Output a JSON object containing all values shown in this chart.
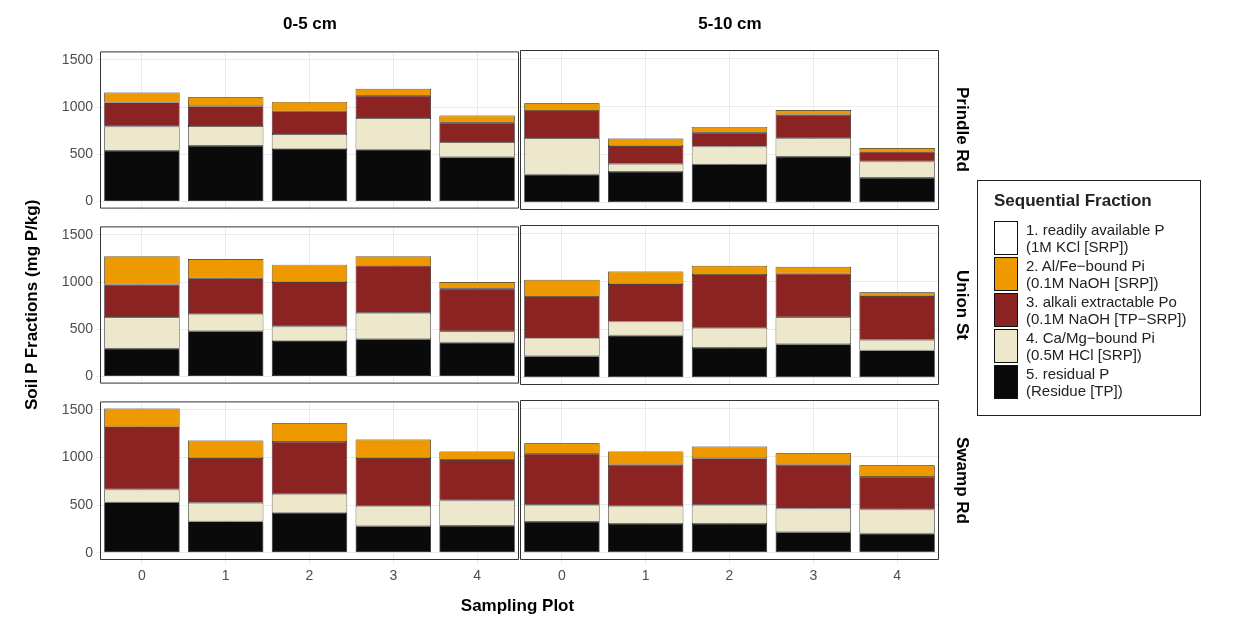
{
  "chart_data": [
    {
      "type": "bar",
      "title": "0-5 cm",
      "stacked": true,
      "grid": true,
      "tick_labels": "y",
      "legend": "right",
      "legend_title": "Sequential Fraction",
      "categories": [
        "0",
        "1",
        "2",
        "3",
        "4"
      ],
      "ylim": [
        -75,
        1590
      ],
      "yticks": [
        0,
        500,
        1000,
        1500
      ],
      "series": [
        {
          "name": "5. residual P\n(Residue [TP])",
          "color": "#0a0a0a",
          "values": [
            535,
            590,
            555,
            550,
            470
          ]
        },
        {
          "name": "4. Ca/Mg−bound Pi\n(0.5M HCl [SRP])",
          "color": "#ede7cc",
          "values": [
            260,
            210,
            160,
            335,
            160
          ]
        },
        {
          "name": "3. alkali extractable Po\n(0.1M NaOH [TP−SRP])",
          "color": "#8b2323",
          "values": [
            255,
            210,
            240,
            235,
            205
          ]
        },
        {
          "name": "2. Al/Fe−bound Pi\n(0.1M NaOH [SRP])",
          "color": "#ee9900",
          "values": [
            105,
            95,
            100,
            75,
            75
          ]
        },
        {
          "name": "1. readily available P\n(1M KCl [SRP])",
          "color": "#ffffff",
          "values": [
            null,
            null,
            null,
            null,
            null
          ]
        }
      ]
    },
    {
      "type": "bar",
      "title": "5-10 cm",
      "y2label": "Prindle Rd",
      "stacked": true,
      "grid": true,
      "tick_labels": false,
      "categories": [
        "0",
        "1",
        "2",
        "3",
        "4"
      ],
      "ylim": [
        -75,
        1590
      ],
      "yticks": [
        0,
        500,
        1000,
        1500
      ],
      "series": [
        {
          "color": "#0a0a0a",
          "values": [
            295,
            320,
            400,
            480,
            260
          ]
        },
        {
          "color": "#ede7cc",
          "values": [
            380,
            85,
            185,
            190,
            170
          ]
        },
        {
          "color": "#8b2323",
          "values": [
            280,
            185,
            145,
            245,
            100
          ]
        },
        {
          "color": "#ee9900",
          "values": [
            80,
            80,
            60,
            50,
            40
          ]
        }
      ]
    },
    {
      "type": "bar",
      "ylabel": "Soil P Fractions (mg P/kg)",
      "stacked": true,
      "grid": true,
      "tick_labels": "y",
      "categories": [
        "0",
        "1",
        "2",
        "3",
        "4"
      ],
      "ylim": [
        -75,
        1590
      ],
      "yticks": [
        0,
        500,
        1000,
        1500
      ],
      "series": [
        {
          "color": "#0a0a0a",
          "values": [
            295,
            480,
            375,
            395,
            360
          ]
        },
        {
          "color": "#ede7cc",
          "values": [
            335,
            185,
            155,
            280,
            120
          ]
        },
        {
          "color": "#8b2323",
          "values": [
            345,
            375,
            470,
            500,
            450
          ]
        },
        {
          "color": "#ee9900",
          "values": [
            300,
            205,
            185,
            100,
            70
          ]
        }
      ]
    },
    {
      "type": "bar",
      "y2label": "Union St",
      "stacked": true,
      "grid": true,
      "tick_labels": false,
      "categories": [
        "0",
        "1",
        "2",
        "3",
        "4"
      ],
      "ylim": [
        -75,
        1590
      ],
      "yticks": [
        0,
        500,
        1000,
        1500
      ],
      "series": [
        {
          "color": "#0a0a0a",
          "values": [
            225,
            440,
            310,
            350,
            285
          ]
        },
        {
          "color": "#ede7cc",
          "values": [
            190,
            145,
            210,
            280,
            110
          ]
        },
        {
          "color": "#8b2323",
          "values": [
            425,
            390,
            550,
            455,
            455
          ]
        },
        {
          "color": "#ee9900",
          "values": [
            180,
            130,
            95,
            70,
            40
          ]
        }
      ]
    },
    {
      "type": "bar",
      "xlabel": "Sampling Plot",
      "stacked": true,
      "grid": true,
      "categories": [
        "0",
        "1",
        "2",
        "3",
        "4"
      ],
      "ylim": [
        -75,
        1590
      ],
      "yticks": [
        0,
        500,
        1000,
        1500
      ],
      "series": [
        {
          "color": "#0a0a0a",
          "values": [
            530,
            330,
            420,
            280,
            285
          ]
        },
        {
          "color": "#ede7cc",
          "values": [
            135,
            195,
            200,
            215,
            265
          ]
        },
        {
          "color": "#8b2323",
          "values": [
            655,
            470,
            545,
            500,
            425
          ]
        },
        {
          "color": "#ee9900",
          "values": [
            195,
            185,
            195,
            195,
            90
          ]
        }
      ]
    },
    {
      "type": "bar",
      "y2label": "Swamp Rd",
      "stacked": true,
      "grid": true,
      "tick_labels": "x",
      "categories": [
        "0",
        "1",
        "2",
        "3",
        "4"
      ],
      "ylim": [
        -75,
        1590
      ],
      "yticks": [
        0,
        500,
        1000,
        1500
      ],
      "series": [
        {
          "color": "#0a0a0a",
          "values": [
            320,
            300,
            300,
            215,
            200
          ]
        },
        {
          "color": "#ede7cc",
          "values": [
            180,
            190,
            200,
            245,
            250
          ]
        },
        {
          "color": "#8b2323",
          "values": [
            530,
            425,
            485,
            455,
            340
          ]
        },
        {
          "color": "#ee9900",
          "values": [
            110,
            140,
            120,
            120,
            120
          ]
        }
      ]
    }
  ]
}
